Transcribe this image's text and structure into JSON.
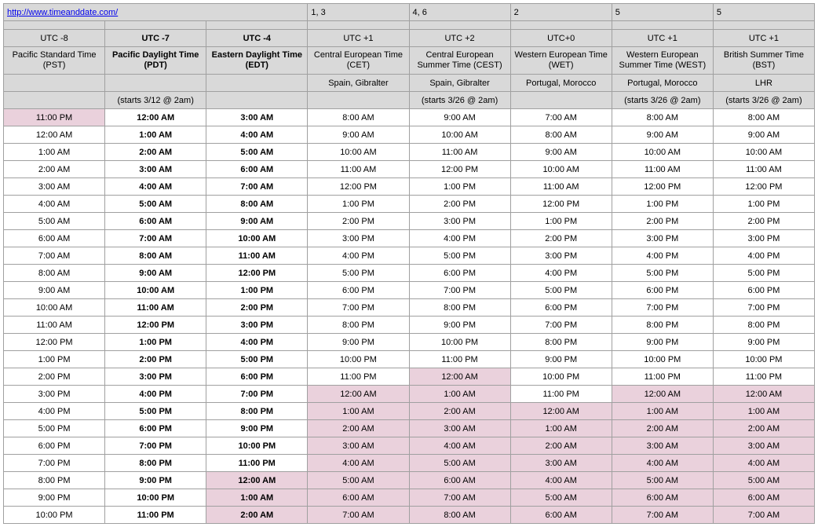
{
  "link": {
    "url": "http://www.timeanddate.com/"
  },
  "top_numbers": [
    "",
    "",
    "",
    "1, 3",
    "4, 6",
    "2",
    "5",
    "5"
  ],
  "columns": [
    {
      "utc": "UTC -8",
      "tz": "Pacific Standard Time (PST)",
      "region": "",
      "starts": "",
      "bold": false
    },
    {
      "utc": "UTC -7",
      "tz": "Pacific Daylight Time (PDT)",
      "region": "",
      "starts": "(starts 3/12 @ 2am)",
      "bold": true
    },
    {
      "utc": "UTC -4",
      "tz": "Eastern Daylight Time (EDT)",
      "region": "",
      "starts": "",
      "bold": true
    },
    {
      "utc": "UTC +1",
      "tz": "Central European Time (CET)",
      "region": "Spain, Gibralter",
      "starts": "",
      "bold": false
    },
    {
      "utc": "UTC +2",
      "tz": "Central European Summer Time (CEST)",
      "region": "Spain, Gibralter",
      "starts": "(starts 3/26 @ 2am)",
      "bold": false
    },
    {
      "utc": "UTC+0",
      "tz": "Western European Time (WET)",
      "region": "Portugal, Morocco",
      "starts": "",
      "bold": false
    },
    {
      "utc": "UTC +1",
      "tz": "Western European Summer Time (WEST)",
      "region": "Portugal, Morocco",
      "starts": "(starts 3/26 @ 2am)",
      "bold": false
    },
    {
      "utc": "UTC +1",
      "tz": "British Summer Time (BST)",
      "region": "LHR",
      "starts": "(starts 3/26 @ 2am)",
      "bold": false
    }
  ],
  "rows": [
    {
      "times": [
        "11:00 PM",
        "12:00 AM",
        "3:00 AM",
        "8:00 AM",
        "9:00 AM",
        "7:00 AM",
        "8:00 AM",
        "8:00 AM"
      ],
      "pink": [
        true,
        false,
        false,
        false,
        false,
        false,
        false,
        false
      ],
      "dashed": false
    },
    {
      "times": [
        "12:00 AM",
        "1:00 AM",
        "4:00 AM",
        "9:00 AM",
        "10:00 AM",
        "8:00 AM",
        "9:00 AM",
        "9:00 AM"
      ],
      "pink": [
        false,
        false,
        false,
        false,
        false,
        false,
        false,
        false
      ],
      "dashed": false
    },
    {
      "times": [
        "1:00 AM",
        "2:00 AM",
        "5:00 AM",
        "10:00 AM",
        "11:00 AM",
        "9:00 AM",
        "10:00 AM",
        "10:00 AM"
      ],
      "pink": [
        false,
        false,
        false,
        false,
        false,
        false,
        false,
        false
      ],
      "dashed": false
    },
    {
      "times": [
        "2:00 AM",
        "3:00 AM",
        "6:00 AM",
        "11:00 AM",
        "12:00 PM",
        "10:00 AM",
        "11:00 AM",
        "11:00 AM"
      ],
      "pink": [
        false,
        false,
        false,
        false,
        false,
        false,
        false,
        false
      ],
      "dashed": false
    },
    {
      "times": [
        "3:00 AM",
        "4:00 AM",
        "7:00 AM",
        "12:00 PM",
        "1:00 PM",
        "11:00 AM",
        "12:00 PM",
        "12:00 PM"
      ],
      "pink": [
        false,
        false,
        false,
        false,
        false,
        false,
        false,
        false
      ],
      "dashed": false
    },
    {
      "times": [
        "4:00 AM",
        "5:00 AM",
        "8:00 AM",
        "1:00 PM",
        "2:00 PM",
        "12:00 PM",
        "1:00 PM",
        "1:00 PM"
      ],
      "pink": [
        false,
        false,
        false,
        false,
        false,
        false,
        false,
        false
      ],
      "dashed": false
    },
    {
      "times": [
        "5:00 AM",
        "6:00 AM",
        "9:00 AM",
        "2:00 PM",
        "3:00 PM",
        "1:00 PM",
        "2:00 PM",
        "2:00 PM"
      ],
      "pink": [
        false,
        false,
        false,
        false,
        false,
        false,
        false,
        false
      ],
      "dashed": false
    },
    {
      "times": [
        "6:00 AM",
        "7:00 AM",
        "10:00 AM",
        "3:00 PM",
        "4:00 PM",
        "2:00 PM",
        "3:00 PM",
        "3:00 PM"
      ],
      "pink": [
        false,
        false,
        false,
        false,
        false,
        false,
        false,
        false
      ],
      "dashed": false
    },
    {
      "times": [
        "7:00 AM",
        "8:00 AM",
        "11:00 AM",
        "4:00 PM",
        "5:00 PM",
        "3:00 PM",
        "4:00 PM",
        "4:00 PM"
      ],
      "pink": [
        false,
        false,
        false,
        false,
        false,
        false,
        false,
        false
      ],
      "dashed": true
    },
    {
      "times": [
        "8:00 AM",
        "9:00 AM",
        "12:00 PM",
        "5:00 PM",
        "6:00 PM",
        "4:00 PM",
        "5:00 PM",
        "5:00 PM"
      ],
      "pink": [
        false,
        false,
        false,
        false,
        false,
        false,
        false,
        false
      ],
      "dashed": false
    },
    {
      "times": [
        "9:00 AM",
        "10:00 AM",
        "1:00 PM",
        "6:00 PM",
        "7:00 PM",
        "5:00 PM",
        "6:00 PM",
        "6:00 PM"
      ],
      "pink": [
        false,
        false,
        false,
        false,
        false,
        false,
        false,
        false
      ],
      "dashed": false
    },
    {
      "times": [
        "10:00 AM",
        "11:00 AM",
        "2:00 PM",
        "7:00 PM",
        "8:00 PM",
        "6:00 PM",
        "7:00 PM",
        "7:00 PM"
      ],
      "pink": [
        false,
        false,
        false,
        false,
        false,
        false,
        false,
        false
      ],
      "dashed": false
    },
    {
      "times": [
        "11:00 AM",
        "12:00 PM",
        "3:00 PM",
        "8:00 PM",
        "9:00 PM",
        "7:00 PM",
        "8:00 PM",
        "8:00 PM"
      ],
      "pink": [
        false,
        false,
        false,
        false,
        false,
        false,
        false,
        false
      ],
      "dashed": false
    },
    {
      "times": [
        "12:00 PM",
        "1:00 PM",
        "4:00 PM",
        "9:00 PM",
        "10:00 PM",
        "8:00 PM",
        "9:00 PM",
        "9:00 PM"
      ],
      "pink": [
        false,
        false,
        false,
        false,
        false,
        false,
        false,
        false
      ],
      "dashed": false
    },
    {
      "times": [
        "1:00 PM",
        "2:00 PM",
        "5:00 PM",
        "10:00 PM",
        "11:00 PM",
        "9:00 PM",
        "10:00 PM",
        "10:00 PM"
      ],
      "pink": [
        false,
        false,
        false,
        false,
        false,
        false,
        false,
        false
      ],
      "dashed": false
    },
    {
      "times": [
        "2:00 PM",
        "3:00 PM",
        "6:00 PM",
        "11:00 PM",
        "12:00 AM",
        "10:00 PM",
        "11:00 PM",
        "11:00 PM"
      ],
      "pink": [
        false,
        false,
        false,
        false,
        true,
        false,
        false,
        false
      ],
      "dashed": false
    },
    {
      "times": [
        "3:00 PM",
        "4:00 PM",
        "7:00 PM",
        "12:00 AM",
        "1:00 AM",
        "11:00 PM",
        "12:00 AM",
        "12:00 AM"
      ],
      "pink": [
        false,
        false,
        false,
        true,
        true,
        false,
        true,
        true
      ],
      "dashed": false
    },
    {
      "times": [
        "4:00 PM",
        "5:00 PM",
        "8:00 PM",
        "1:00 AM",
        "2:00 AM",
        "12:00 AM",
        "1:00 AM",
        "1:00 AM"
      ],
      "pink": [
        false,
        false,
        false,
        true,
        true,
        true,
        true,
        true
      ],
      "dashed": true
    },
    {
      "times": [
        "5:00 PM",
        "6:00 PM",
        "9:00 PM",
        "2:00 AM",
        "3:00 AM",
        "1:00 AM",
        "2:00 AM",
        "2:00 AM"
      ],
      "pink": [
        false,
        false,
        false,
        true,
        true,
        true,
        true,
        true
      ],
      "dashed": false
    },
    {
      "times": [
        "6:00 PM",
        "7:00 PM",
        "10:00 PM",
        "3:00 AM",
        "4:00 AM",
        "2:00 AM",
        "3:00 AM",
        "3:00 AM"
      ],
      "pink": [
        false,
        false,
        false,
        true,
        true,
        true,
        true,
        true
      ],
      "dashed": false
    },
    {
      "times": [
        "7:00 PM",
        "8:00 PM",
        "11:00 PM",
        "4:00 AM",
        "5:00 AM",
        "3:00 AM",
        "4:00 AM",
        "4:00 AM"
      ],
      "pink": [
        false,
        false,
        false,
        true,
        true,
        true,
        true,
        true
      ],
      "dashed": false
    },
    {
      "times": [
        "8:00 PM",
        "9:00 PM",
        "12:00 AM",
        "5:00 AM",
        "6:00 AM",
        "4:00 AM",
        "5:00 AM",
        "5:00 AM"
      ],
      "pink": [
        false,
        false,
        true,
        true,
        true,
        true,
        true,
        true
      ],
      "dashed": false
    },
    {
      "times": [
        "9:00 PM",
        "10:00 PM",
        "1:00 AM",
        "6:00 AM",
        "7:00 AM",
        "5:00 AM",
        "6:00 AM",
        "6:00 AM"
      ],
      "pink": [
        false,
        false,
        true,
        true,
        true,
        true,
        true,
        true
      ],
      "dashed": false
    },
    {
      "times": [
        "10:00 PM",
        "11:00 PM",
        "2:00 AM",
        "7:00 AM",
        "8:00 AM",
        "6:00 AM",
        "7:00 AM",
        "7:00 AM"
      ],
      "pink": [
        false,
        false,
        true,
        true,
        true,
        true,
        true,
        true
      ],
      "dashed": false
    }
  ],
  "colors": {
    "header_bg": "#d9d9d9",
    "pink_bg": "#ead1dc",
    "border": "#a0a0a0",
    "link": "#0000ee"
  }
}
